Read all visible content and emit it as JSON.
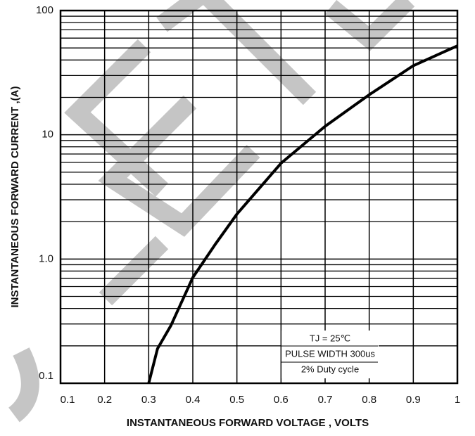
{
  "chart_data": {
    "type": "line",
    "xlabel": "INSTANTANEOUS FORWARD VOLTAGE , VOLTS",
    "ylabel": "INSTANTANEOUS  FORWARD CURRENT ,(A)",
    "x": [
      0.3,
      0.32,
      0.35,
      0.4,
      0.45,
      0.5,
      0.6,
      0.7,
      0.8,
      0.9,
      1.0
    ],
    "series": [
      {
        "color": "#000000",
        "values": [
          0.1,
          0.19,
          0.29,
          0.71,
          1.3,
          2.3,
          5.9,
          11.7,
          21,
          36,
          52
        ]
      }
    ],
    "xlim": [
      0.1,
      1.0
    ],
    "xticks": [
      0.1,
      0.2,
      0.3,
      0.4,
      0.5,
      0.6,
      0.7,
      0.8,
      0.9,
      1.0
    ],
    "ylim": [
      0.1,
      100
    ],
    "yticks": [
      0.1,
      {
        "value": 1,
        "label": "1.0"
      },
      10,
      100
    ],
    "log_y": true,
    "grid": true,
    "minor_grid": true,
    "annotations": [
      "TJ = 25℃",
      "PULSE WIDTH 300us",
      "2% Duty cycle"
    ]
  }
}
